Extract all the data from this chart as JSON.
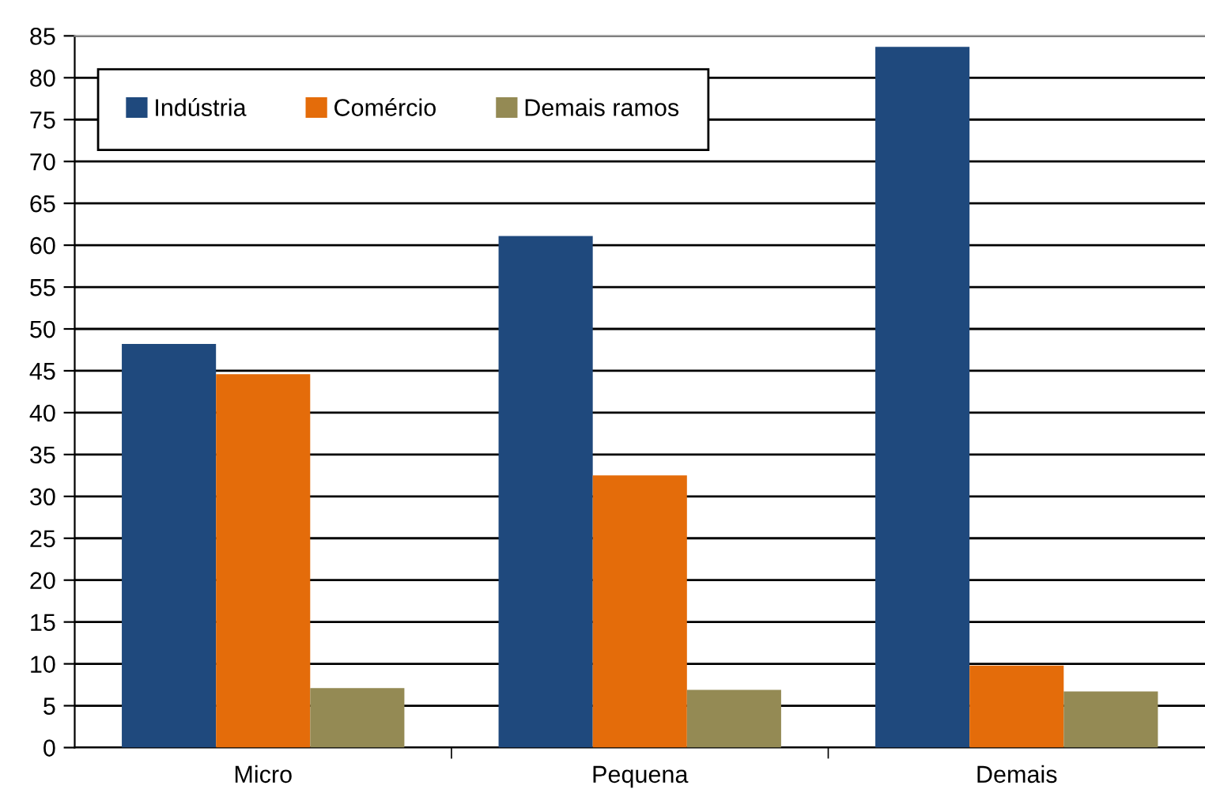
{
  "chart_data": {
    "type": "bar",
    "categories": [
      "Micro",
      "Pequena",
      "Demais"
    ],
    "series": [
      {
        "name": "Indústria",
        "color": "#1f497d",
        "values": [
          48.2,
          61.1,
          83.7
        ]
      },
      {
        "name": "Comércio",
        "color": "#e46c0a",
        "values": [
          44.6,
          32.5,
          9.8
        ]
      },
      {
        "name": "Demais ramos",
        "color": "#948a54",
        "values": [
          7.1,
          6.9,
          6.7
        ]
      }
    ],
    "ylim": [
      0,
      85
    ],
    "yticks": [
      0,
      5,
      10,
      15,
      20,
      25,
      30,
      35,
      40,
      45,
      50,
      55,
      60,
      65,
      70,
      75,
      80,
      85
    ],
    "grid": "y",
    "legend": "top left"
  }
}
